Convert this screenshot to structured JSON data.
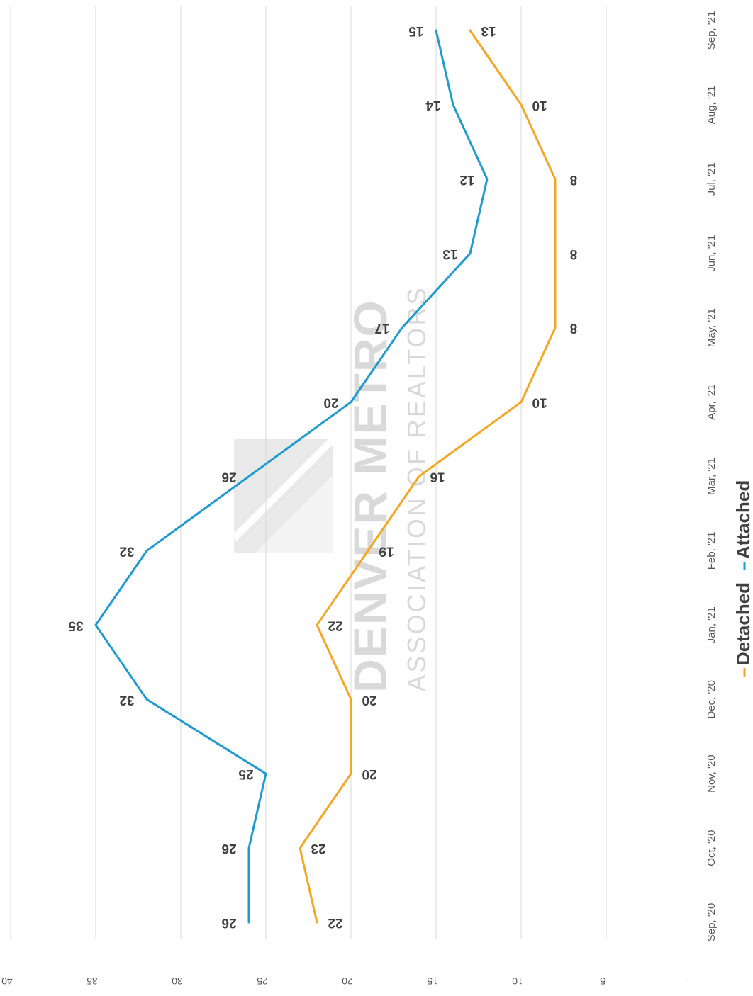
{
  "watermark": {
    "line1": "DENVER METRO",
    "line2": "ASSOCIATION OF REALTORS"
  },
  "legend": [
    {
      "label": "Detached",
      "color": "#f5a623"
    },
    {
      "label": "Attached",
      "color": "#1f9bd1"
    }
  ],
  "chart_data": {
    "type": "line",
    "orientation": "rotated-180",
    "categories": [
      "Sep, '20",
      "Oct, '20",
      "Nov, '20",
      "Dec, '20",
      "Jan, '21",
      "Feb, '21",
      "Mar, '21",
      "Apr, '21",
      "May, '21",
      "Jun, '21",
      "Jul, '21",
      "Aug, '21",
      "Sep, '21"
    ],
    "series": [
      {
        "name": "Detached",
        "color": "#f5a623",
        "values": [
          22,
          23,
          20,
          20,
          22,
          19,
          16,
          10,
          8,
          8,
          8,
          10,
          13
        ]
      },
      {
        "name": "Attached",
        "color": "#1f9bd1",
        "values": [
          26,
          26,
          25,
          32,
          35,
          32,
          26,
          20,
          17,
          13,
          12,
          14,
          15
        ]
      }
    ],
    "y_ticks": [
      "-",
      "5",
      "10",
      "15",
      "20",
      "25",
      "30",
      "35",
      "40"
    ],
    "ylim": [
      0,
      40
    ],
    "grid": true,
    "legend_position": "bottom",
    "title": "",
    "xlabel": "",
    "ylabel": ""
  }
}
